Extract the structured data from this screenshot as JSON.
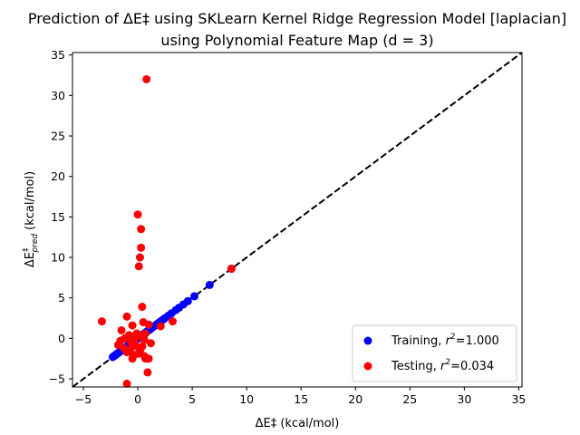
{
  "chart_data": {
    "type": "scatter",
    "title_line1": "Prediction of ΔE‡ using SKLearn Kernel Ridge Regression Model [laplacian]",
    "title_line2": "using Polynomial Feature Map (d = 3)",
    "xlabel": "ΔE‡ (kcal/mol)",
    "ylabel_main": "ΔE",
    "ylabel_sup": "‡",
    "ylabel_sub": "pred",
    "ylabel_unit": "(kcal/mol)",
    "xlim": [
      -6,
      35.3
    ],
    "ylim": [
      -6,
      35.3
    ],
    "xticks": [
      -5,
      0,
      5,
      10,
      15,
      20,
      25,
      30,
      35
    ],
    "yticks": [
      -5,
      0,
      5,
      10,
      15,
      20,
      25,
      30,
      35
    ],
    "grid": false,
    "legend_position": "lower right",
    "reference_line": {
      "style": "dashed",
      "color": "#000000",
      "from": [
        -6,
        -6
      ],
      "to": [
        35.3,
        35.3
      ]
    },
    "series": [
      {
        "name": "Training",
        "legend_r2": "1.000",
        "color": "#0000ff",
        "points": [
          [
            -2.3,
            -2.3
          ],
          [
            -2.2,
            -2.2
          ],
          [
            -2.1,
            -2.1
          ],
          [
            -2.0,
            -2.0
          ],
          [
            -1.9,
            -1.9
          ],
          [
            -1.8,
            -1.8
          ],
          [
            -1.7,
            -1.7
          ],
          [
            -1.6,
            -1.6
          ],
          [
            -1.5,
            -1.5
          ],
          [
            -1.4,
            -1.4
          ],
          [
            -1.3,
            -1.3
          ],
          [
            -1.2,
            -1.2
          ],
          [
            -1.1,
            -1.1
          ],
          [
            -1.0,
            -1.0
          ],
          [
            -0.9,
            -0.9
          ],
          [
            -0.8,
            -0.8
          ],
          [
            -0.7,
            -0.7
          ],
          [
            -0.6,
            -0.6
          ],
          [
            -0.5,
            -0.5
          ],
          [
            -0.4,
            -0.4
          ],
          [
            -0.3,
            -0.3
          ],
          [
            -0.2,
            -0.2
          ],
          [
            -0.1,
            -0.1
          ],
          [
            0.0,
            0.0
          ],
          [
            0.1,
            0.1
          ],
          [
            0.2,
            0.2
          ],
          [
            0.3,
            0.3
          ],
          [
            0.4,
            0.4
          ],
          [
            0.5,
            0.5
          ],
          [
            0.6,
            0.6
          ],
          [
            0.7,
            0.7
          ],
          [
            0.8,
            0.8
          ],
          [
            0.9,
            0.9
          ],
          [
            1.0,
            1.0
          ],
          [
            1.1,
            1.1
          ],
          [
            1.2,
            1.2
          ],
          [
            1.3,
            1.3
          ],
          [
            1.5,
            1.5
          ],
          [
            1.7,
            1.7
          ],
          [
            1.9,
            1.9
          ],
          [
            2.1,
            2.1
          ],
          [
            2.3,
            2.3
          ],
          [
            2.5,
            2.5
          ],
          [
            2.8,
            2.8
          ],
          [
            3.1,
            3.1
          ],
          [
            3.5,
            3.5
          ],
          [
            3.8,
            3.8
          ],
          [
            4.2,
            4.2
          ],
          [
            4.6,
            4.6
          ],
          [
            5.2,
            5.2
          ],
          [
            6.6,
            6.6
          ],
          [
            8.6,
            8.6
          ]
        ]
      },
      {
        "name": "Testing",
        "legend_r2": "0.034",
        "color": "#ff0000",
        "points": [
          [
            0.8,
            32.0
          ],
          [
            0.0,
            15.3
          ],
          [
            0.3,
            13.5
          ],
          [
            0.3,
            11.2
          ],
          [
            0.2,
            10.0
          ],
          [
            0.1,
            8.9
          ],
          [
            8.6,
            8.6
          ],
          [
            0.4,
            3.9
          ],
          [
            -1.0,
            2.7
          ],
          [
            -3.3,
            2.1
          ],
          [
            0.5,
            2.0
          ],
          [
            3.2,
            2.1
          ],
          [
            -0.5,
            1.6
          ],
          [
            1.0,
            1.7
          ],
          [
            2.1,
            1.5
          ],
          [
            -1.5,
            1.0
          ],
          [
            -0.1,
            0.6
          ],
          [
            0.7,
            0.6
          ],
          [
            -0.8,
            0.4
          ],
          [
            0.3,
            0.3
          ],
          [
            -1.2,
            0.0
          ],
          [
            -0.3,
            -0.1
          ],
          [
            -1.6,
            -0.3
          ],
          [
            0.6,
            -0.2
          ],
          [
            -0.6,
            -0.5
          ],
          [
            1.2,
            -0.6
          ],
          [
            -1.8,
            -0.8
          ],
          [
            -0.2,
            -0.9
          ],
          [
            0.4,
            -1.0
          ],
          [
            -1.3,
            -1.2
          ],
          [
            -0.7,
            -1.4
          ],
          [
            0.2,
            -1.5
          ],
          [
            -1.0,
            -1.7
          ],
          [
            0.0,
            -1.9
          ],
          [
            -0.4,
            -2.1
          ],
          [
            0.6,
            -2.2
          ],
          [
            -0.5,
            -2.5
          ],
          [
            0.7,
            -2.5
          ],
          [
            1.0,
            -2.5
          ],
          [
            0.9,
            -4.2
          ],
          [
            -1.0,
            -5.6
          ]
        ]
      }
    ]
  }
}
